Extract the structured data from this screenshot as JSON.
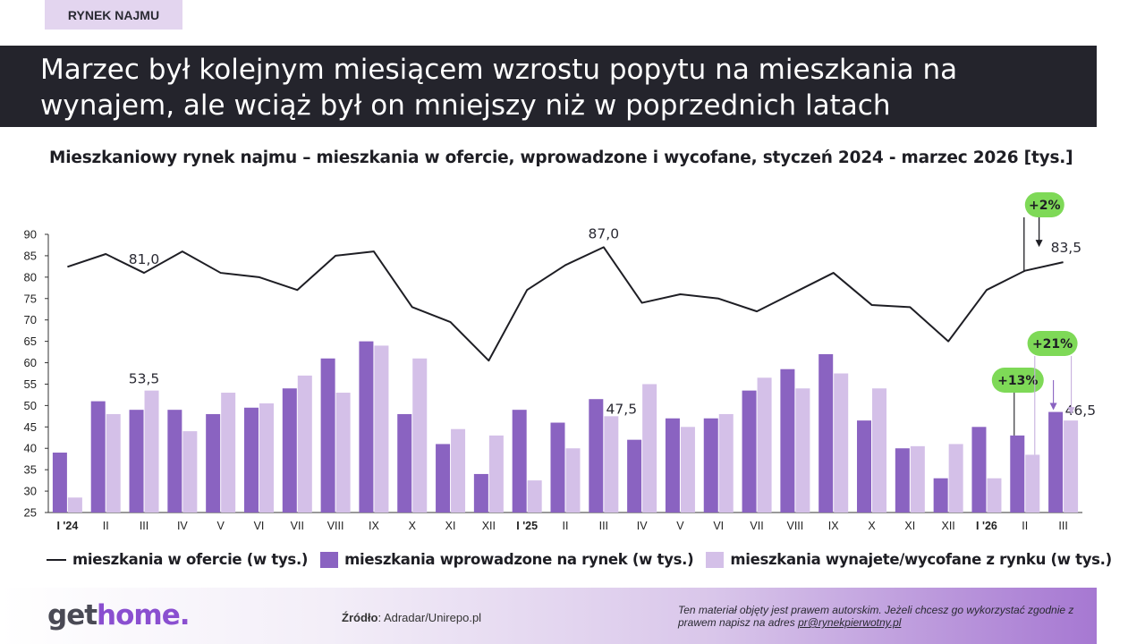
{
  "header": {
    "tag": "RYNEK NAJMU",
    "title": "Marzec był kolejnym miesiącem wzrostu popytu na mieszkania na wynajem, ale wciąż był on mniejszy niż w poprzednich latach"
  },
  "chart_data": {
    "type": "bar",
    "title": "Mieszkaniowy rynek najmu – mieszkania w ofercie, wprowadzone i wycofane, styczeń 2024 - marzec 2026 [tys.]",
    "categories": [
      "I '24",
      "II",
      "III",
      "IV",
      "V",
      "VI",
      "VII",
      "VIII",
      "IX",
      "X",
      "XI",
      "XII",
      "I '25",
      "II",
      "III",
      "IV",
      "V",
      "VI",
      "VII",
      "VIII",
      "IX",
      "X",
      "XI",
      "XII",
      "I '26",
      "II",
      "III"
    ],
    "bold_categories": [
      0,
      12,
      24
    ],
    "ylim": [
      25,
      90
    ],
    "yticks": [
      25,
      30,
      35,
      40,
      45,
      50,
      55,
      60,
      65,
      70,
      75,
      80,
      85,
      90
    ],
    "series": [
      {
        "name": "mieszkania w ofercie (w tys.)",
        "kind": "line",
        "color": "#1e1e24",
        "values": [
          82.4,
          85.4,
          81.0,
          86.0,
          81.0,
          80.0,
          77.0,
          85.0,
          86.0,
          73.0,
          69.5,
          60.5,
          77.0,
          82.8,
          87.0,
          74.0,
          76.0,
          75.0,
          72.0,
          76.5,
          81.0,
          73.5,
          73.0,
          65.0,
          77.0,
          81.5,
          83.5
        ]
      },
      {
        "name": "mieszkania wprowadzone na rynek (w tys.)",
        "kind": "bar",
        "color": "#8a63c1",
        "values": [
          39.0,
          51.0,
          49.0,
          49.0,
          48.0,
          49.5,
          54.0,
          61.0,
          65.0,
          48.0,
          41.0,
          34.0,
          49.0,
          46.0,
          51.5,
          42.0,
          47.0,
          47.0,
          53.5,
          58.5,
          62.0,
          46.5,
          40.0,
          33.0,
          45.0,
          43.0,
          48.5
        ]
      },
      {
        "name": "mieszkania wynajete/wycofane z rynku (w tys.)",
        "kind": "bar",
        "color": "#d4c0e8",
        "values": [
          28.5,
          48.0,
          53.5,
          44.0,
          53.0,
          50.5,
          57.0,
          53.0,
          64.0,
          61.0,
          44.5,
          43.0,
          32.5,
          40.0,
          47.5,
          55.0,
          45.0,
          48.0,
          56.5,
          54.0,
          57.5,
          54.0,
          40.5,
          41.0,
          33.0,
          38.5,
          46.5
        ]
      }
    ],
    "annotations": {
      "line_labels": [
        {
          "index": 2,
          "text": "81,0"
        },
        {
          "index": 14,
          "text": "87,0"
        },
        {
          "index": 26,
          "text": "83,5"
        }
      ],
      "bar_labels": [
        {
          "index": 2,
          "series": 2,
          "text": "53,5"
        },
        {
          "index": 14,
          "series": 2,
          "text": "47,5"
        },
        {
          "index": 26,
          "series": 2,
          "text": "46,5"
        }
      ],
      "badges": [
        {
          "text": "+2%",
          "target": "line"
        },
        {
          "text": "+13%",
          "target": "introduced"
        },
        {
          "text": "+21%",
          "target": "withdrawn"
        }
      ]
    },
    "legend": [
      "mieszkania w ofercie (w tys.)",
      "mieszkania wprowadzone na rynek (w tys.)",
      "mieszkania wynajete/wycofane z rynku (w tys.)"
    ],
    "legend_position": "bottom"
  },
  "colors": {
    "line": "#1e1e24",
    "introduced": "#8a63c1",
    "withdrawn": "#d4c0e8",
    "badge": "#7ed957",
    "banner": "#24242c",
    "tag": "#e3d5ef"
  },
  "footer": {
    "logo_a": "get",
    "logo_b": "home.",
    "source_label": "Źródło",
    "source_text": ": Adradar/Unirepo.pl",
    "copyright_text": "Ten materiał objęty jest prawem autorskim. Jeżeli chcesz go wykorzystać zgodnie z prawem napisz na adres ",
    "copyright_email": "pr@rynekpierwotny.pl"
  }
}
